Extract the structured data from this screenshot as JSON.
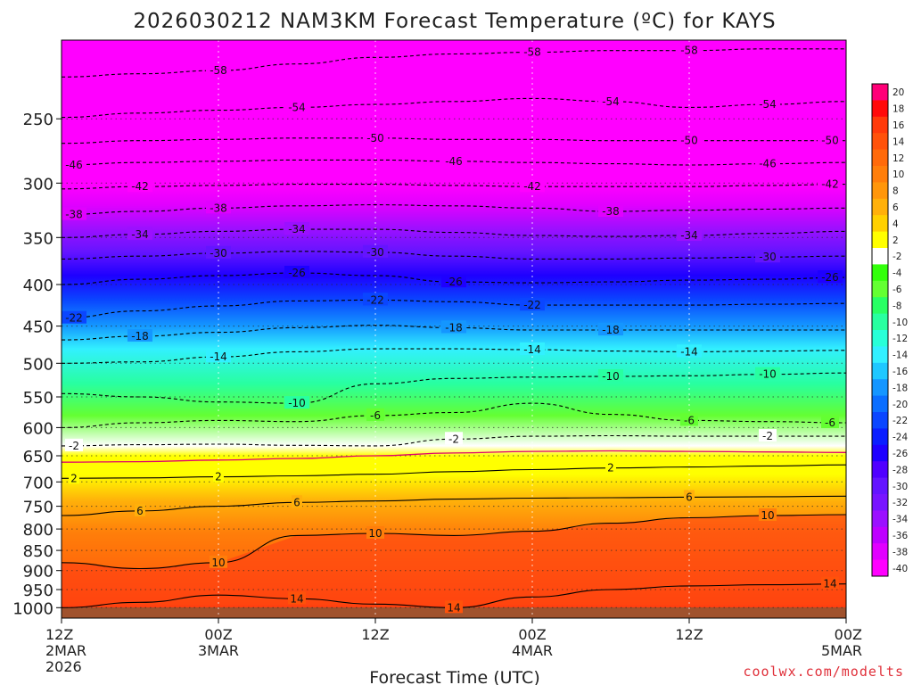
{
  "chart_data": {
    "type": "heatmap",
    "title": "2026030212 NAM3KM Forecast Temperature (ºC) for KAYS",
    "xlabel": "Forecast Time (UTC)",
    "ylabel": "",
    "x_range_hours": [
      0,
      60
    ],
    "y_range_hpa": [
      200,
      1030
    ],
    "y_scale": "log",
    "x_ticks": [
      {
        "hour": 0,
        "lines": [
          "12Z",
          "2MAR",
          "2026"
        ]
      },
      {
        "hour": 12,
        "lines": [
          "00Z",
          "3MAR"
        ]
      },
      {
        "hour": 24,
        "lines": [
          "12Z"
        ]
      },
      {
        "hour": 36,
        "lines": [
          "00Z",
          "4MAR"
        ]
      },
      {
        "hour": 48,
        "lines": [
          "12Z"
        ]
      },
      {
        "hour": 60,
        "lines": [
          "00Z",
          "5MAR"
        ]
      }
    ],
    "y_ticks": [
      250,
      300,
      350,
      400,
      450,
      500,
      550,
      600,
      650,
      700,
      750,
      800,
      850,
      900,
      950,
      1000
    ],
    "colorbar": {
      "labels": [
        "20",
        "18",
        "16",
        "14",
        "12",
        "10",
        "8",
        "6",
        "4",
        "2",
        "-2",
        "-4",
        "-6",
        "-8",
        "-10",
        "-12",
        "-14",
        "-16",
        "-18",
        "-20",
        "-22",
        "-24",
        "-26",
        "-28",
        "-30",
        "-32",
        "-34",
        "-36",
        "-38",
        "-40"
      ],
      "colors": [
        "#ff0078",
        "#ff0a0a",
        "#ff3a0a",
        "#ff520a",
        "#ff6a0a",
        "#ff7e0a",
        "#ff960a",
        "#ffb00a",
        "#ffd000",
        "#ffff00",
        "#ffffff",
        "#32ff0a",
        "#64ff32",
        "#28ff64",
        "#28ffa0",
        "#28ffd8",
        "#32f0ff",
        "#1ec8ff",
        "#1496ff",
        "#0a6eff",
        "#0a46ff",
        "#0a1eff",
        "#1e00ff",
        "#5000ff",
        "#6414ff",
        "#7814ff",
        "#9b10ff",
        "#be00ff",
        "#e100ff",
        "#ff00ff"
      ]
    },
    "series": [
      {
        "name": "-58",
        "style": "dashed",
        "pressure": [
          222,
          220,
          218,
          214,
          210,
          208,
          207,
          206,
          206,
          205,
          205
        ]
      },
      {
        "name": "-54",
        "style": "dashed",
        "pressure": [
          249,
          246,
          244,
          242,
          240,
          238,
          236,
          238,
          242,
          240,
          238
        ]
      },
      {
        "name": "-50",
        "style": "dashed",
        "pressure": [
          268,
          266,
          265,
          264,
          264,
          265,
          265,
          266,
          266,
          266,
          266
        ]
      },
      {
        "name": "-46",
        "style": "dashed",
        "pressure": [
          285,
          283,
          282,
          281,
          281,
          282,
          283,
          284,
          285,
          284,
          283
        ]
      },
      {
        "name": "-42",
        "style": "dashed",
        "pressure": [
          305,
          303,
          302,
          301,
          301,
          302,
          303,
          303,
          303,
          302,
          301
        ]
      },
      {
        "name": "-38",
        "style": "dashed",
        "pressure": [
          328,
          325,
          322,
          320,
          319,
          320,
          322,
          325,
          324,
          323,
          322
        ]
      },
      {
        "name": "-34",
        "style": "dashed",
        "pressure": [
          350,
          347,
          344,
          342,
          342,
          345,
          348,
          349,
          348,
          346,
          344
        ]
      },
      {
        "name": "-30",
        "style": "dashed",
        "pressure": [
          372,
          369,
          366,
          364,
          365,
          369,
          372,
          372,
          371,
          370,
          369
        ]
      },
      {
        "name": "-26",
        "style": "dashed",
        "pressure": [
          400,
          394,
          390,
          387,
          390,
          397,
          398,
          397,
          395,
          394,
          392
        ]
      },
      {
        "name": "-22",
        "style": "dashed",
        "pressure": [
          440,
          431,
          425,
          419,
          418,
          420,
          424,
          424,
          424,
          423,
          422
        ]
      },
      {
        "name": "-18",
        "style": "dashed",
        "pressure": [
          468,
          463,
          458,
          452,
          449,
          452,
          455,
          455,
          455,
          455,
          455
        ]
      },
      {
        "name": "-14",
        "style": "dashed",
        "pressure": [
          500,
          498,
          491,
          484,
          480,
          480,
          481,
          483,
          484,
          483,
          482
        ]
      },
      {
        "name": "-10",
        "style": "dashed",
        "pressure": [
          545,
          550,
          558,
          560,
          530,
          522,
          520,
          519,
          518,
          516,
          514
        ]
      },
      {
        "name": "-6",
        "style": "dashed",
        "pressure": [
          600,
          592,
          588,
          590,
          580,
          575,
          560,
          578,
          588,
          590,
          592
        ]
      },
      {
        "name": "-2",
        "style": "dashed",
        "pressure": [
          632,
          630,
          629,
          631,
          632,
          620,
          615,
          614,
          615,
          615,
          615
        ]
      },
      {
        "name": "0",
        "style": "solid-magenta",
        "pressure": [
          662,
          661,
          658,
          655,
          650,
          645,
          642,
          641,
          642,
          643,
          644
        ]
      },
      {
        "name": "2",
        "style": "solid",
        "pressure": [
          693,
          692,
          690,
          688,
          685,
          680,
          676,
          673,
          671,
          669,
          667
        ]
      },
      {
        "name": "6",
        "style": "solid",
        "pressure": [
          770,
          760,
          750,
          742,
          739,
          735,
          733,
          732,
          731,
          730,
          729
        ]
      },
      {
        "name": "10",
        "style": "solid",
        "pressure": [
          880,
          895,
          880,
          815,
          810,
          815,
          805,
          787,
          775,
          770,
          768
        ]
      },
      {
        "name": "14",
        "style": "solid",
        "pressure": [
          1000,
          985,
          965,
          975,
          990,
          1000,
          970,
          950,
          940,
          937,
          935
        ]
      }
    ]
  },
  "watermark": "coolwx.com/modelts"
}
